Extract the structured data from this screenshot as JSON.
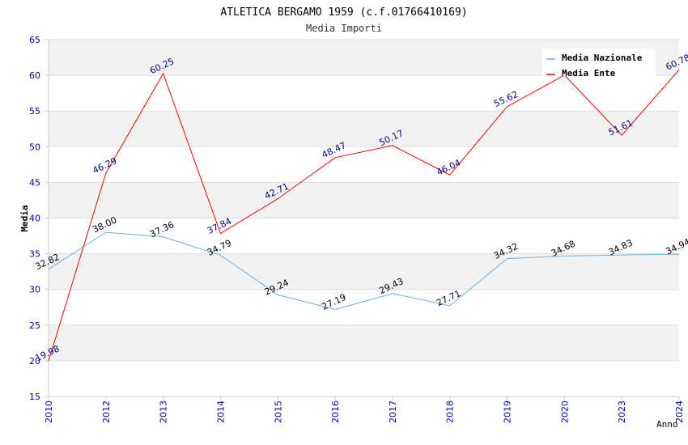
{
  "chart_data": {
    "type": "line",
    "title": "ATLETICA BERGAMO 1959 (c.f.01766410169)",
    "subtitle": "Media Importi",
    "xlabel": "Anno",
    "ylabel": "Media",
    "categories": [
      "2010",
      "2012",
      "2013",
      "2014",
      "2015",
      "2016",
      "2017",
      "2018",
      "2019",
      "2020",
      "2023",
      "2024"
    ],
    "ylim": [
      15,
      65
    ],
    "yticks": [
      "15",
      "20",
      "25",
      "30",
      "35",
      "40",
      "45",
      "50",
      "55",
      "60",
      "65"
    ],
    "grid": true,
    "legend_position": "top-right",
    "series": [
      {
        "name": "Media Nazionale",
        "color": "#6aaee8",
        "label_color": "#000000",
        "values": [
          32.82,
          38.0,
          37.36,
          34.79,
          29.24,
          27.19,
          29.43,
          27.71,
          34.32,
          34.68,
          34.83,
          34.94
        ],
        "labels": [
          "32.82",
          "38.00",
          "37.36",
          "34.79",
          "29.24",
          "27.19",
          "29.43",
          "27.71",
          "34.32",
          "34.68",
          "34.83",
          "34.94"
        ]
      },
      {
        "name": "Media Ente",
        "color": "#ff0000",
        "label_color": "#000080",
        "values": [
          19.98,
          46.29,
          60.25,
          37.84,
          42.71,
          48.47,
          50.17,
          46.04,
          55.62,
          60.03,
          51.61,
          60.78
        ],
        "labels": [
          "19.98",
          "46.29",
          "60.25",
          "37.84",
          "42.71",
          "48.47",
          "50.17",
          "46.04",
          "55.62",
          "",
          "51.61",
          "60.78"
        ]
      }
    ]
  }
}
